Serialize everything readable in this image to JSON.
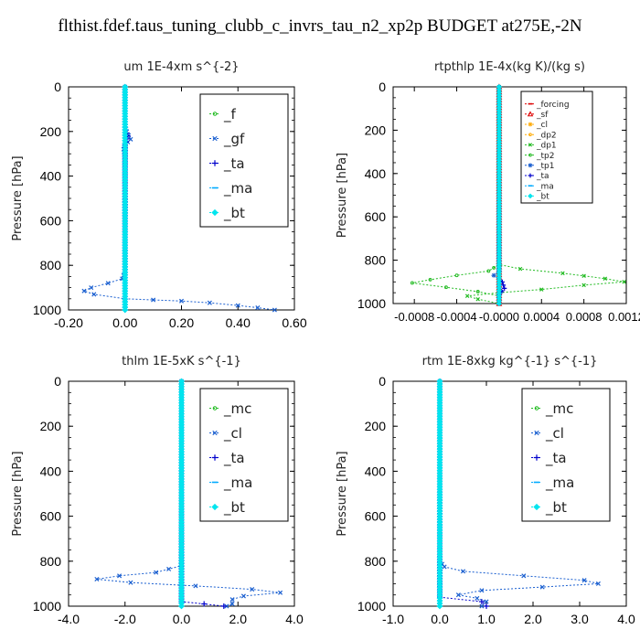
{
  "page": {
    "title": "flthist.fdef.taus_tuning_clubb_c_invrs_tau_n2_xp2p  BUDGET at275E,-2N"
  },
  "colors": {
    "green": "#22bb22",
    "blue": "#1a5fd0",
    "dark_blue": "#0000cc",
    "light_blue": "#00aaff",
    "cyan": "#00e5ee",
    "red": "#dd0000",
    "orange": "#ffaa00",
    "axis": "#000000"
  },
  "chart_data": [
    {
      "type": "line",
      "title": "um   1E-4xm s^{-2}",
      "ylabel": "Pressure [hPa]",
      "xlim": [
        -0.2,
        0.6
      ],
      "ylim": [
        1000,
        0
      ],
      "xticks": [
        "-0.20",
        "0.00",
        "0.20",
        "0.40",
        "0.60"
      ],
      "xtick_values": [
        -0.2,
        0.0,
        0.2,
        0.4,
        0.6
      ],
      "yticks": [
        "0",
        "200",
        "400",
        "600",
        "800",
        "1000"
      ],
      "legend_position": "top-right",
      "legend_font": "large",
      "series": [
        {
          "name": "_f",
          "color": "#22bb22",
          "marker": "circle",
          "points": [
            [
              0.0,
              0
            ],
            [
              0.0,
              1000
            ]
          ]
        },
        {
          "name": "_gf",
          "color": "#1a5fd0",
          "marker": "x",
          "points": [
            [
              0.0,
              0
            ],
            [
              0.0,
              150
            ],
            [
              0.005,
              200
            ],
            [
              0.02,
              235
            ],
            [
              0.0,
              260
            ],
            [
              -0.005,
              280
            ],
            [
              0.0,
              320
            ],
            [
              0.0,
              830
            ],
            [
              -0.01,
              860
            ],
            [
              -0.06,
              880
            ],
            [
              -0.12,
              900
            ],
            [
              -0.145,
              915
            ],
            [
              -0.11,
              930
            ],
            [
              0.0,
              950
            ],
            [
              0.1,
              955
            ],
            [
              0.2,
              960
            ],
            [
              0.3,
              968
            ],
            [
              0.4,
              980
            ],
            [
              0.47,
              990
            ],
            [
              0.53,
              1000
            ]
          ]
        },
        {
          "name": "_ta",
          "color": "#0000cc",
          "marker": "plus",
          "points": [
            [
              0.0,
              0
            ],
            [
              0.0,
              180
            ],
            [
              0.01,
              220
            ],
            [
              0.0,
              260
            ],
            [
              0.0,
              1000
            ]
          ]
        },
        {
          "name": "_ma",
          "color": "#00aaff",
          "marker": "dash",
          "points": [
            [
              0.0,
              0
            ],
            [
              0.0,
              1000
            ]
          ]
        },
        {
          "name": "_bt",
          "color": "#00e5ee",
          "marker": "diamond",
          "points": [
            [
              0.0,
              0
            ],
            [
              0.0,
              1000
            ]
          ]
        }
      ]
    },
    {
      "type": "line",
      "title": "rtpthlp   1E-4x(kg K)/(kg s)",
      "ylabel": "Pressure [hPa]",
      "xlim": [
        -0.001,
        0.0012
      ],
      "ylim": [
        1000,
        0
      ],
      "xticks": [
        "-0.0008",
        "-0.0004",
        "-0.0000",
        "0.0004",
        "0.0008",
        "0.0012"
      ],
      "xtick_values": [
        -0.0008,
        -0.0004,
        0.0,
        0.0004,
        0.0008,
        0.0012
      ],
      "yticks": [
        "0",
        "200",
        "400",
        "600",
        "800",
        "1000"
      ],
      "legend_position": "top-right",
      "legend_font": "small",
      "series": [
        {
          "name": "_forcing",
          "color": "#dd0000",
          "marker": "dash",
          "points": [
            [
              0.0,
              0
            ],
            [
              0.0,
              1000
            ]
          ]
        },
        {
          "name": "_sf",
          "color": "#dd0000",
          "marker": "triangle",
          "points": [
            [
              0.0,
              0
            ],
            [
              0.0,
              1000
            ]
          ]
        },
        {
          "name": "_cl",
          "color": "#ffaa00",
          "marker": "star",
          "points": [
            [
              0.0,
              0
            ],
            [
              0.0,
              1000
            ]
          ]
        },
        {
          "name": "_dp2",
          "color": "#ffaa00",
          "marker": "circle",
          "points": [
            [
              0.0,
              0
            ],
            [
              0.0,
              1000
            ]
          ]
        },
        {
          "name": "_dp1",
          "color": "#22bb22",
          "marker": "x",
          "points": [
            [
              0.0,
              0
            ],
            [
              0.0,
              820
            ],
            [
              0.0002,
              840
            ],
            [
              0.0006,
              860
            ],
            [
              0.001,
              885
            ],
            [
              0.00118,
              900
            ],
            [
              0.0008,
              915
            ],
            [
              0.0004,
              935
            ],
            [
              0.0,
              950
            ],
            [
              -0.0003,
              965
            ],
            [
              -0.0002,
              980
            ],
            [
              0.0,
              1000
            ]
          ]
        },
        {
          "name": "_tp2",
          "color": "#22bb22",
          "marker": "circle",
          "points": [
            [
              0.0,
              0
            ],
            [
              0.0,
              820
            ],
            [
              -0.0001,
              850
            ],
            [
              -0.0004,
              870
            ],
            [
              -0.00065,
              890
            ],
            [
              -0.00082,
              905
            ],
            [
              -0.0005,
              925
            ],
            [
              -0.0002,
              945
            ],
            [
              0.0,
              965
            ],
            [
              0.0,
              1000
            ]
          ]
        },
        {
          "name": "_tp1",
          "color": "#1a5fd0",
          "marker": "star",
          "points": [
            [
              0.0,
              0
            ],
            [
              0.0,
              850
            ],
            [
              -5e-05,
              870
            ],
            [
              0.0,
              890
            ],
            [
              0.0,
              1000
            ]
          ]
        },
        {
          "name": "_ta",
          "color": "#0000cc",
          "marker": "plus",
          "points": [
            [
              0.0,
              0
            ],
            [
              0.0,
              880
            ],
            [
              3e-05,
              900
            ],
            [
              5e-05,
              930
            ],
            [
              0.0,
              960
            ],
            [
              0.0,
              1000
            ]
          ]
        },
        {
          "name": "_ma",
          "color": "#00aaff",
          "marker": "dash",
          "points": [
            [
              0.0,
              0
            ],
            [
              0.0,
              1000
            ]
          ]
        },
        {
          "name": "_bt",
          "color": "#00e5ee",
          "marker": "diamond",
          "points": [
            [
              0.0,
              0
            ],
            [
              0.0,
              1000
            ]
          ]
        }
      ]
    },
    {
      "type": "line",
      "title": "thlm   1E-5xK s^{-1}",
      "ylabel": "Pressure [hPa]",
      "xlim": [
        -4.0,
        4.0
      ],
      "ylim": [
        1000,
        0
      ],
      "xticks": [
        "-4.0",
        "-2.0",
        "0.0",
        "2.0",
        "4.0"
      ],
      "xtick_values": [
        -4.0,
        -2.0,
        0.0,
        2.0,
        4.0
      ],
      "yticks": [
        "0",
        "200",
        "400",
        "600",
        "800",
        "1000"
      ],
      "legend_position": "top-right",
      "legend_font": "large",
      "series": [
        {
          "name": "_mc",
          "color": "#22bb22",
          "marker": "circle",
          "points": [
            [
              0.0,
              0
            ],
            [
              0.0,
              1000
            ]
          ]
        },
        {
          "name": "_cl",
          "color": "#1a5fd0",
          "marker": "x",
          "points": [
            [
              0.0,
              0
            ],
            [
              0.0,
              820
            ],
            [
              -0.9,
              850
            ],
            [
              -2.2,
              865
            ],
            [
              -3.0,
              880
            ],
            [
              -1.8,
              895
            ],
            [
              0.5,
              910
            ],
            [
              2.5,
              925
            ],
            [
              3.5,
              940
            ],
            [
              2.2,
              955
            ],
            [
              1.8,
              970
            ],
            [
              1.8,
              990
            ],
            [
              1.6,
              1000
            ]
          ]
        },
        {
          "name": "_ta",
          "color": "#0000cc",
          "marker": "plus",
          "points": [
            [
              0.0,
              0
            ],
            [
              0.0,
              980
            ],
            [
              0.8,
              990
            ],
            [
              1.5,
              1000
            ]
          ]
        },
        {
          "name": "_ma",
          "color": "#00aaff",
          "marker": "dash",
          "points": [
            [
              0.0,
              0
            ],
            [
              0.0,
              1000
            ]
          ]
        },
        {
          "name": "_bt",
          "color": "#00e5ee",
          "marker": "diamond",
          "points": [
            [
              0.0,
              0
            ],
            [
              0.0,
              1000
            ]
          ]
        }
      ]
    },
    {
      "type": "line",
      "title": "rtm   1E-8xkg kg^{-1} s^{-1}",
      "ylabel": "Pressure [hPa]",
      "xlim": [
        -1.0,
        4.0
      ],
      "ylim": [
        1000,
        0
      ],
      "xticks": [
        "-1.0",
        "0.0",
        "1.0",
        "2.0",
        "3.0",
        "4.0"
      ],
      "xtick_values": [
        -1.0,
        0.0,
        1.0,
        2.0,
        3.0,
        4.0
      ],
      "yticks": [
        "0",
        "200",
        "400",
        "600",
        "800",
        "1000"
      ],
      "legend_position": "top-right",
      "legend_font": "large",
      "series": [
        {
          "name": "_mc",
          "color": "#22bb22",
          "marker": "circle",
          "points": [
            [
              0.0,
              0
            ],
            [
              0.0,
              1000
            ]
          ]
        },
        {
          "name": "_cl",
          "color": "#1a5fd0",
          "marker": "x",
          "points": [
            [
              0.0,
              0
            ],
            [
              0.0,
              800
            ],
            [
              0.1,
              825
            ],
            [
              0.5,
              845
            ],
            [
              1.8,
              865
            ],
            [
              3.1,
              885
            ],
            [
              3.4,
              900
            ],
            [
              2.2,
              915
            ],
            [
              0.9,
              930
            ],
            [
              0.4,
              950
            ],
            [
              0.8,
              965
            ],
            [
              1.0,
              980
            ],
            [
              0.9,
              1000
            ]
          ]
        },
        {
          "name": "_ta",
          "color": "#0000cc",
          "marker": "plus",
          "points": [
            [
              0.0,
              0
            ],
            [
              0.0,
              960
            ],
            [
              0.9,
              980
            ],
            [
              1.0,
              1000
            ]
          ]
        },
        {
          "name": "_ma",
          "color": "#00aaff",
          "marker": "dash",
          "points": [
            [
              0.0,
              0
            ],
            [
              0.0,
              1000
            ]
          ]
        },
        {
          "name": "_bt",
          "color": "#00e5ee",
          "marker": "diamond",
          "points": [
            [
              0.0,
              0
            ],
            [
              0.0,
              1000
            ]
          ]
        }
      ]
    }
  ]
}
